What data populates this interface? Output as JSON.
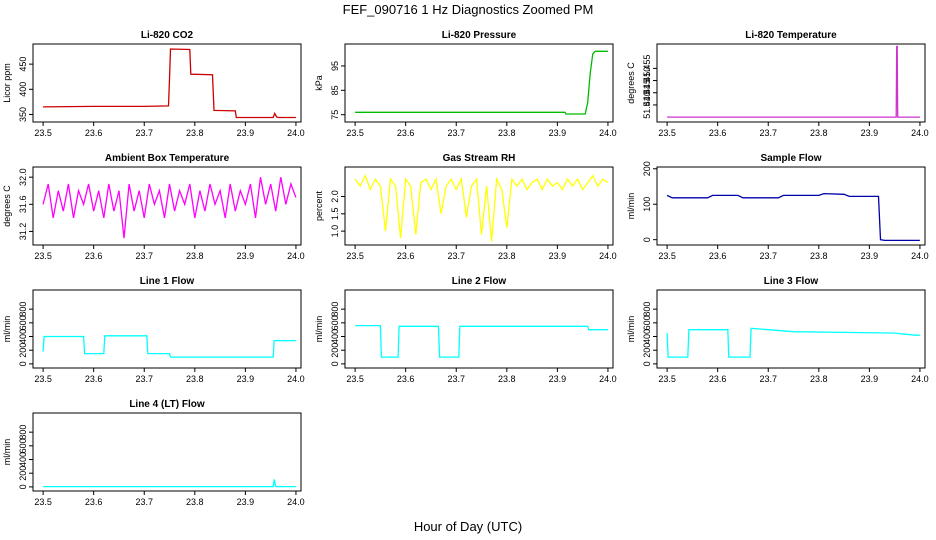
{
  "title": "FEF_090716  1 Hz Diagnostics Zoomed PM",
  "xlabel": "Hour of Day (UTC)",
  "chart_data": [
    {
      "type": "line",
      "title": "Li-820 CO2",
      "ylabel": "Licor ppm",
      "color": "#cc0000",
      "xlim": [
        23.48,
        24.01
      ],
      "ylim": [
        335,
        490
      ],
      "xticks": [
        "23.5",
        "23.6",
        "23.7",
        "23.8",
        "23.9",
        "24.0"
      ],
      "yticks": [
        "350",
        "400",
        "450"
      ],
      "x": [
        23.5,
        23.6,
        23.7,
        23.748,
        23.75,
        23.752,
        23.79,
        23.792,
        23.835,
        23.838,
        23.88,
        23.882,
        23.955,
        23.958,
        23.962,
        23.965,
        24.0
      ],
      "y": [
        365,
        366,
        366,
        367,
        420,
        480,
        479,
        430,
        429,
        358,
        357,
        344,
        344,
        352,
        345,
        344,
        344
      ]
    },
    {
      "type": "line",
      "title": "Li-820 Pressure",
      "ylabel": "kPa",
      "color": "#00bb00",
      "xlim": [
        23.48,
        24.01
      ],
      "ylim": [
        72,
        104
      ],
      "xticks": [
        "23.5",
        "23.6",
        "23.7",
        "23.8",
        "23.9",
        "24.0"
      ],
      "yticks": [
        "75",
        "85",
        "95"
      ],
      "x": [
        23.5,
        23.6,
        23.7,
        23.8,
        23.9,
        23.915,
        23.917,
        23.955,
        23.96,
        23.965,
        23.97,
        23.975,
        24.0
      ],
      "y": [
        76,
        76,
        76,
        76,
        76,
        76,
        75.3,
        75.3,
        80,
        92,
        100,
        101,
        101
      ]
    },
    {
      "type": "line",
      "title": "Li-820 Temperature",
      "ylabel": "degrees C",
      "color": "#cc33cc",
      "xlim": [
        23.48,
        24.01
      ],
      "ylim": [
        51.433,
        51.465
      ],
      "xticks": [
        "23.5",
        "23.6",
        "23.7",
        "23.8",
        "23.9",
        "24.0"
      ],
      "yticks": [
        "51.440",
        "51.445",
        "51.450",
        "51.455"
      ],
      "x": [
        23.5,
        23.953,
        23.954,
        23.955,
        23.956,
        24.0
      ],
      "y": [
        51.435,
        51.435,
        51.464,
        51.464,
        51.435,
        51.435
      ]
    },
    {
      "type": "line",
      "title": "Ambient Box Temperature",
      "ylabel": "degrees C",
      "color": "#ff00ff",
      "xlim": [
        23.48,
        24.01
      ],
      "ylim": [
        31.0,
        32.15
      ],
      "xticks": [
        "23.5",
        "23.6",
        "23.7",
        "23.8",
        "23.9",
        "24.0"
      ],
      "yticks": [
        "31.2",
        "31.6",
        "32.0"
      ],
      "x": [
        23.5,
        23.51,
        23.52,
        23.53,
        23.54,
        23.55,
        23.56,
        23.57,
        23.58,
        23.59,
        23.6,
        23.61,
        23.62,
        23.63,
        23.64,
        23.65,
        23.66,
        23.67,
        23.68,
        23.69,
        23.7,
        23.71,
        23.72,
        23.73,
        23.74,
        23.75,
        23.76,
        23.77,
        23.78,
        23.79,
        23.8,
        23.81,
        23.82,
        23.83,
        23.84,
        23.85,
        23.86,
        23.87,
        23.88,
        23.89,
        23.9,
        23.91,
        23.92,
        23.93,
        23.94,
        23.95,
        23.96,
        23.97,
        23.98,
        23.99,
        24.0
      ],
      "y": [
        31.6,
        31.9,
        31.4,
        31.8,
        31.5,
        31.9,
        31.4,
        31.8,
        31.6,
        31.9,
        31.5,
        31.8,
        31.4,
        31.9,
        31.5,
        31.8,
        31.1,
        31.9,
        31.5,
        31.8,
        31.4,
        31.9,
        31.6,
        31.8,
        31.4,
        31.9,
        31.5,
        31.8,
        31.6,
        31.9,
        31.4,
        31.8,
        31.5,
        31.9,
        31.6,
        31.8,
        31.4,
        31.9,
        31.5,
        31.8,
        31.6,
        31.9,
        31.4,
        32.0,
        31.6,
        31.9,
        31.5,
        32.0,
        31.6,
        31.9,
        31.7
      ]
    },
    {
      "type": "line",
      "title": "Gas Stream RH",
      "ylabel": "percent",
      "color": "#ffff00",
      "xlim": [
        23.48,
        24.01
      ],
      "ylim": [
        0.6,
        2.85
      ],
      "xticks": [
        "23.5",
        "23.6",
        "23.7",
        "23.8",
        "23.9",
        "24.0"
      ],
      "yticks": [
        "1.0",
        "1.5",
        "2.0"
      ],
      "x": [
        23.5,
        23.51,
        23.52,
        23.53,
        23.54,
        23.55,
        23.56,
        23.57,
        23.58,
        23.59,
        23.6,
        23.61,
        23.62,
        23.63,
        23.64,
        23.65,
        23.66,
        23.67,
        23.68,
        23.69,
        23.7,
        23.71,
        23.72,
        23.73,
        23.74,
        23.75,
        23.76,
        23.77,
        23.78,
        23.79,
        23.8,
        23.81,
        23.82,
        23.83,
        23.84,
        23.85,
        23.86,
        23.87,
        23.88,
        23.89,
        23.9,
        23.91,
        23.92,
        23.93,
        23.94,
        23.95,
        23.96,
        23.97,
        23.98,
        23.99,
        24.0
      ],
      "y": [
        2.5,
        2.3,
        2.6,
        2.2,
        2.5,
        2.3,
        1.0,
        2.5,
        2.3,
        0.8,
        2.5,
        2.3,
        0.9,
        2.4,
        2.5,
        2.2,
        2.5,
        1.5,
        2.3,
        2.5,
        2.2,
        2.5,
        1.4,
        2.3,
        2.5,
        0.9,
        2.3,
        0.7,
        2.5,
        2.2,
        1.1,
        2.5,
        2.3,
        2.5,
        2.2,
        2.4,
        2.5,
        2.2,
        2.5,
        2.3,
        2.4,
        2.2,
        2.5,
        2.3,
        2.5,
        2.2,
        2.4,
        2.6,
        2.3,
        2.5,
        2.4
      ]
    },
    {
      "type": "line",
      "title": "Sample Flow",
      "ylabel": "ml/min",
      "color": "#0000aa",
      "xlim": [
        23.48,
        24.01
      ],
      "ylim": [
        -15,
        205
      ],
      "xticks": [
        "23.5",
        "23.6",
        "23.7",
        "23.8",
        "23.9",
        "24.0"
      ],
      "yticks": [
        "0",
        "100",
        "200"
      ],
      "x": [
        23.5,
        23.51,
        23.58,
        23.59,
        23.64,
        23.65,
        23.72,
        23.73,
        23.8,
        23.81,
        23.85,
        23.86,
        23.918,
        23.922,
        23.93,
        24.0
      ],
      "y": [
        125,
        118,
        118,
        125,
        125,
        118,
        118,
        125,
        125,
        130,
        128,
        122,
        122,
        0,
        -2,
        -2
      ]
    },
    {
      "type": "line",
      "title": "Line 1 Flow",
      "ylabel": "ml/min",
      "color": "#00ffff",
      "xlim": [
        23.48,
        24.01
      ],
      "ylim": [
        -60,
        1080
      ],
      "xticks": [
        "23.5",
        "23.6",
        "23.7",
        "23.8",
        "23.9",
        "24.0"
      ],
      "yticks": [
        "0",
        "200",
        "400",
        "600",
        "800"
      ],
      "x": [
        23.5,
        23.502,
        23.58,
        23.582,
        23.62,
        23.622,
        23.705,
        23.707,
        23.75,
        23.752,
        23.955,
        23.957,
        24.0
      ],
      "y": [
        180,
        400,
        400,
        150,
        150,
        410,
        410,
        150,
        150,
        100,
        100,
        340,
        340
      ]
    },
    {
      "type": "line",
      "title": "Line 2 Flow",
      "ylabel": "ml/min",
      "color": "#00ffff",
      "xlim": [
        23.48,
        24.01
      ],
      "ylim": [
        -60,
        1080
      ],
      "xticks": [
        "23.5",
        "23.6",
        "23.7",
        "23.8",
        "23.9",
        "24.0"
      ],
      "yticks": [
        "0",
        "200",
        "400",
        "600",
        "800"
      ],
      "x": [
        23.5,
        23.55,
        23.552,
        23.585,
        23.587,
        23.665,
        23.667,
        23.705,
        23.707,
        23.96,
        23.962,
        24.0
      ],
      "y": [
        560,
        560,
        100,
        100,
        550,
        550,
        100,
        100,
        550,
        550,
        500,
        500
      ]
    },
    {
      "type": "line",
      "title": "Line 3 Flow",
      "ylabel": "ml/min",
      "color": "#00ffff",
      "xlim": [
        23.48,
        24.01
      ],
      "ylim": [
        -60,
        1080
      ],
      "xticks": [
        "23.5",
        "23.6",
        "23.7",
        "23.8",
        "23.9",
        "24.0"
      ],
      "yticks": [
        "0",
        "200",
        "400",
        "600",
        "800"
      ],
      "x": [
        23.5,
        23.502,
        23.541,
        23.543,
        23.62,
        23.622,
        23.664,
        23.666,
        23.75,
        23.85,
        23.95,
        23.99,
        24.0
      ],
      "y": [
        450,
        100,
        100,
        500,
        500,
        100,
        100,
        520,
        470,
        460,
        450,
        420,
        420
      ]
    },
    {
      "type": "line",
      "title": "Line 4 (LT) Flow",
      "ylabel": "ml/min",
      "color": "#00ffff",
      "xlim": [
        23.48,
        24.01
      ],
      "ylim": [
        -60,
        1080
      ],
      "xticks": [
        "23.5",
        "23.6",
        "23.7",
        "23.8",
        "23.9",
        "24.0"
      ],
      "yticks": [
        "0",
        "200",
        "400",
        "600",
        "800"
      ],
      "x": [
        23.5,
        23.955,
        23.957,
        23.96,
        24.0
      ],
      "y": [
        5,
        5,
        110,
        5,
        5
      ]
    }
  ]
}
